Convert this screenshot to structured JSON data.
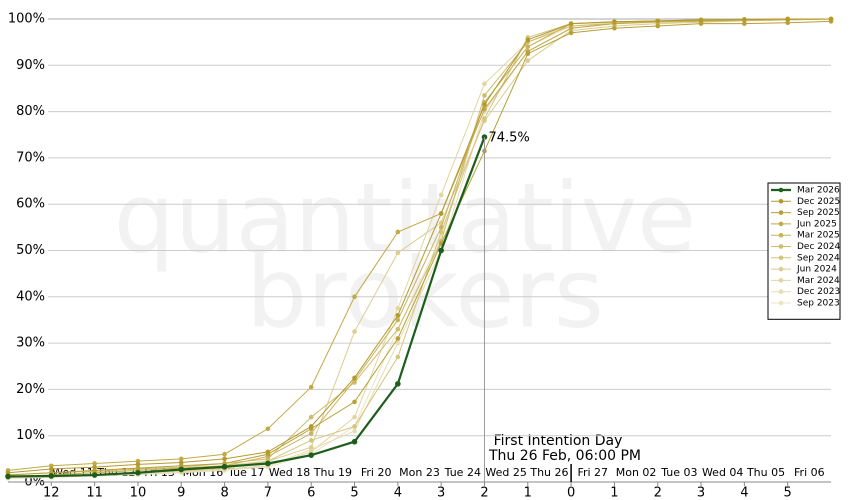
{
  "chart_data": {
    "type": "line",
    "watermark": [
      "quantitative",
      "brokers"
    ],
    "annotation": [
      "First Intention Day",
      "Thu 26 Feb, 06:00 PM"
    ],
    "x": [
      -13,
      -12,
      -11,
      -10,
      -9,
      -8,
      -7,
      -6,
      -5,
      -4,
      -3,
      -2,
      -1,
      0,
      1,
      2,
      3,
      4,
      5,
      6
    ],
    "xlim": [
      -13,
      6
    ],
    "xticks": [
      {
        "value": -12,
        "label": "12"
      },
      {
        "value": -11,
        "label": "11"
      },
      {
        "value": -10,
        "label": "10"
      },
      {
        "value": -9,
        "label": "9"
      },
      {
        "value": -8,
        "label": "8"
      },
      {
        "value": -7,
        "label": "7"
      },
      {
        "value": -6,
        "label": "6"
      },
      {
        "value": -5,
        "label": "5"
      },
      {
        "value": -4,
        "label": "4"
      },
      {
        "value": -3,
        "label": "3"
      },
      {
        "value": -2,
        "label": "2"
      },
      {
        "value": -1,
        "label": "1"
      },
      0,
      1,
      2,
      3,
      4,
      5
    ],
    "date_ticks": [
      {
        "value": -11.5,
        "label": "Wed 11"
      },
      {
        "value": -10.5,
        "label": "Thu 12"
      },
      {
        "value": -9.5,
        "label": "Fri 13"
      },
      {
        "value": -8.5,
        "label": "Mon 16"
      },
      {
        "value": -7.5,
        "label": "Tue 17"
      },
      {
        "value": -6.5,
        "label": "Wed 18"
      },
      {
        "value": -5.5,
        "label": "Thu 19"
      },
      {
        "value": -4.5,
        "label": "Fri 20"
      },
      {
        "value": -3.5,
        "label": "Mon 23"
      },
      {
        "value": -2.5,
        "label": "Tue 24"
      },
      {
        "value": -1.5,
        "label": "Wed 25"
      },
      {
        "value": -0.5,
        "label": "Thu 26"
      },
      {
        "value": 0.5,
        "label": "Fri 27"
      },
      {
        "value": 1.5,
        "label": "Mon 02"
      },
      {
        "value": 2.5,
        "label": "Tue 03"
      },
      {
        "value": 3.5,
        "label": "Wed 04"
      },
      {
        "value": 4.5,
        "label": "Thu 05"
      },
      {
        "value": 5.5,
        "label": "Fri 06"
      }
    ],
    "ylim": [
      0,
      100
    ],
    "yticks": [
      {
        "value": 0,
        "label": "0%"
      },
      {
        "value": 10,
        "label": "10%"
      },
      {
        "value": 20,
        "label": "20%"
      },
      {
        "value": 30,
        "label": "30%"
      },
      {
        "value": 40,
        "label": "40%"
      },
      {
        "value": 50,
        "label": "50%"
      },
      {
        "value": 60,
        "label": "60%"
      },
      {
        "value": 70,
        "label": "70%"
      },
      {
        "value": 80,
        "label": "80%"
      },
      {
        "value": 90,
        "label": "90%"
      },
      {
        "value": 100,
        "label": "100%"
      }
    ],
    "grid": true,
    "legend": "right",
    "series": [
      {
        "name": "Mar 2026",
        "color": "#1d5e1d",
        "values": [
          1.2,
          1.3,
          1.5,
          2,
          2.7,
          3.3,
          4,
          5.8,
          8.7,
          21.2,
          50,
          74.5,
          null,
          null,
          null,
          null,
          null,
          null,
          null,
          null
        ],
        "value_labels": [
          null,
          null,
          null,
          null,
          null,
          null,
          null,
          null,
          null,
          null,
          null,
          "74.5%",
          null,
          null,
          null,
          null,
          null,
          null,
          null,
          null
        ]
      },
      {
        "name": "Dec 2025",
        "color": "#b39a2c",
        "values": [
          2,
          2.8,
          3.2,
          3.8,
          4.2,
          5,
          6.5,
          12,
          22.5,
          36,
          58,
          81.5,
          95.5,
          99,
          99.4,
          99.6,
          99.8,
          99.9,
          100,
          100
        ]
      },
      {
        "name": "Sep 2025",
        "color": "#b8a035",
        "values": [
          1.5,
          2,
          2.5,
          3,
          3.5,
          4,
          6,
          11.5,
          17.3,
          31,
          51.5,
          71.5,
          92.5,
          97,
          98,
          98.5,
          99,
          99,
          99.2,
          99.5
        ]
      },
      {
        "name": "Jun 2025",
        "color": "#c2aa48",
        "values": [
          2.5,
          3.5,
          4,
          4.5,
          5,
          6,
          11.5,
          20.5,
          40,
          54,
          58,
          80.5,
          93,
          98,
          99,
          99.5,
          99.6,
          99.8,
          99.9,
          100
        ]
      },
      {
        "name": "Mar 2025",
        "color": "#c9b35a",
        "values": [
          1,
          1.5,
          2,
          2.5,
          3,
          3.5,
          5.5,
          10.5,
          22,
          35,
          55,
          82,
          94,
          99,
          99.4,
          99.6,
          99.8,
          99.9,
          100,
          100
        ]
      },
      {
        "name": "Dec 2024",
        "color": "#cfbc6c",
        "values": [
          1.5,
          2,
          2.3,
          2.8,
          3.2,
          4,
          5,
          14,
          21.5,
          33,
          52,
          83.5,
          95,
          98.5,
          99,
          99.3,
          99.5,
          99.7,
          99.8,
          100
        ]
      },
      {
        "name": "Sep 2024",
        "color": "#d5c47e",
        "values": [
          1,
          1.3,
          1.6,
          2,
          2.5,
          3,
          4.5,
          9,
          12,
          27,
          54,
          78.5,
          96,
          99,
          99.3,
          99.5,
          99.7,
          99.9,
          100,
          100
        ]
      },
      {
        "name": "Jun 2024",
        "color": "#dbcc90",
        "values": [
          1.2,
          1.5,
          2,
          2.5,
          3,
          3.5,
          4.5,
          7.5,
          32.5,
          49.5,
          56,
          78,
          91,
          97.5,
          98.5,
          99,
          99.3,
          99.6,
          99.8,
          100
        ]
      },
      {
        "name": "Mar 2024",
        "color": "#e1d5a2",
        "values": [
          1,
          1.2,
          1.5,
          2,
          2.3,
          2.8,
          3.5,
          6.5,
          14,
          37.5,
          62,
          86,
          95,
          99,
          99.3,
          99.5,
          99.7,
          99.8,
          99.9,
          100
        ]
      },
      {
        "name": "Dec 2023",
        "color": "#e6ddb3",
        "values": [
          0.8,
          1,
          1.3,
          1.6,
          2,
          2.5,
          3.5,
          7,
          11,
          30,
          50,
          80,
          93,
          98,
          99,
          99.4,
          99.6,
          99.8,
          100,
          100
        ]
      },
      {
        "name": "Sep 2023",
        "color": "#ebe4c4",
        "values": [
          1,
          1.2,
          1.5,
          1.8,
          2.2,
          2.6,
          3.2,
          6,
          12,
          33,
          53,
          82,
          94,
          98.5,
          99.2,
          99.5,
          99.7,
          99.8,
          99.9,
          100
        ]
      }
    ]
  }
}
